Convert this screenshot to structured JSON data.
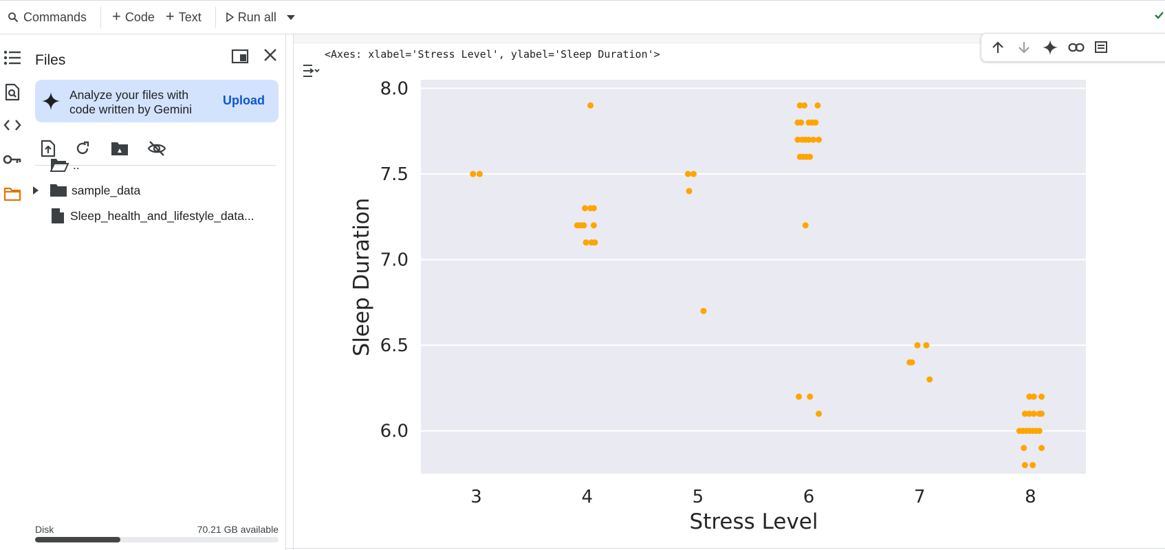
{
  "toolbar": {
    "commands_label": "Commands",
    "code_label": "Code",
    "text_label": "Text",
    "run_all_label": "Run all"
  },
  "files_panel": {
    "title": "Files",
    "gemini_banner": {
      "text": "Analyze your files with code written by Gemini",
      "upload_label": "Upload"
    },
    "tree": [
      {
        "name": "..",
        "type": "parent-folder"
      },
      {
        "name": "sample_data",
        "type": "folder"
      },
      {
        "name": "Sleep_health_and_lifestyle_data...",
        "type": "file"
      }
    ],
    "disk": {
      "label": "Disk",
      "available": "70.21 GB available",
      "used_fraction": 0.35
    }
  },
  "output": {
    "repr": "<Axes: xlabel='Stress Level', ylabel='Sleep Duration'>"
  },
  "colors": {
    "accent": "#0b57d0",
    "banner_bg": "#d3e3fd",
    "point_color": "#ffa500",
    "plot_bg": "#eaeaf2",
    "folder_active": "#e37400",
    "check": "#188038"
  },
  "chart_data": {
    "type": "scatter",
    "style": "seaborn stripplot with jitter",
    "xlabel": "Stress Level",
    "ylabel": "Sleep Duration",
    "categories": [
      "3",
      "4",
      "5",
      "6",
      "7",
      "8"
    ],
    "ylim": [
      5.75,
      8.05
    ],
    "yticks": [
      "6.0",
      "6.5",
      "7.0",
      "7.5",
      "8.0"
    ],
    "grid": true,
    "points": [
      {
        "x": "3",
        "y": 7.5,
        "offset": -0.03
      },
      {
        "x": "3",
        "y": 7.5,
        "offset": 0.03
      },
      {
        "x": "4",
        "y": 7.9,
        "offset": 0.03
      },
      {
        "x": "4",
        "y": 7.3,
        "offset": -0.02
      },
      {
        "x": "4",
        "y": 7.3,
        "offset": 0.03
      },
      {
        "x": "4",
        "y": 7.3,
        "offset": 0.06
      },
      {
        "x": "4",
        "y": 7.2,
        "offset": -0.09
      },
      {
        "x": "4",
        "y": 7.2,
        "offset": -0.06
      },
      {
        "x": "4",
        "y": 7.2,
        "offset": -0.03
      },
      {
        "x": "4",
        "y": 7.2,
        "offset": 0.06
      },
      {
        "x": "4",
        "y": 7.1,
        "offset": -0.01
      },
      {
        "x": "4",
        "y": 7.1,
        "offset": 0.04
      },
      {
        "x": "4",
        "y": 7.1,
        "offset": 0.07
      },
      {
        "x": "5",
        "y": 7.5,
        "offset": -0.09
      },
      {
        "x": "5",
        "y": 7.5,
        "offset": -0.04
      },
      {
        "x": "5",
        "y": 7.4,
        "offset": -0.08
      },
      {
        "x": "5",
        "y": 6.7,
        "offset": 0.05
      },
      {
        "x": "6",
        "y": 7.9,
        "offset": -0.08
      },
      {
        "x": "6",
        "y": 7.9,
        "offset": -0.04
      },
      {
        "x": "6",
        "y": 7.9,
        "offset": 0.08
      },
      {
        "x": "6",
        "y": 7.8,
        "offset": -0.1
      },
      {
        "x": "6",
        "y": 7.8,
        "offset": -0.07
      },
      {
        "x": "6",
        "y": 7.8,
        "offset": 0.0
      },
      {
        "x": "6",
        "y": 7.8,
        "offset": 0.03
      },
      {
        "x": "6",
        "y": 7.8,
        "offset": 0.06
      },
      {
        "x": "6",
        "y": 7.7,
        "offset": -0.1
      },
      {
        "x": "6",
        "y": 7.7,
        "offset": -0.06
      },
      {
        "x": "6",
        "y": 7.7,
        "offset": -0.03
      },
      {
        "x": "6",
        "y": 7.7,
        "offset": 0.0
      },
      {
        "x": "6",
        "y": 7.7,
        "offset": 0.04
      },
      {
        "x": "6",
        "y": 7.7,
        "offset": 0.09
      },
      {
        "x": "6",
        "y": 7.6,
        "offset": -0.08
      },
      {
        "x": "6",
        "y": 7.6,
        "offset": -0.05
      },
      {
        "x": "6",
        "y": 7.6,
        "offset": -0.02
      },
      {
        "x": "6",
        "y": 7.6,
        "offset": 0.01
      },
      {
        "x": "6",
        "y": 7.2,
        "offset": -0.03
      },
      {
        "x": "6",
        "y": 6.2,
        "offset": -0.09
      },
      {
        "x": "6",
        "y": 6.2,
        "offset": 0.01
      },
      {
        "x": "6",
        "y": 6.1,
        "offset": 0.09
      },
      {
        "x": "7",
        "y": 6.5,
        "offset": -0.02
      },
      {
        "x": "7",
        "y": 6.5,
        "offset": 0.06
      },
      {
        "x": "7",
        "y": 6.4,
        "offset": -0.09
      },
      {
        "x": "7",
        "y": 6.4,
        "offset": -0.07
      },
      {
        "x": "7",
        "y": 6.3,
        "offset": 0.09
      },
      {
        "x": "8",
        "y": 6.2,
        "offset": -0.01
      },
      {
        "x": "8",
        "y": 6.2,
        "offset": 0.03
      },
      {
        "x": "8",
        "y": 6.2,
        "offset": 0.1
      },
      {
        "x": "8",
        "y": 6.1,
        "offset": -0.05
      },
      {
        "x": "8",
        "y": 6.1,
        "offset": -0.01
      },
      {
        "x": "8",
        "y": 6.1,
        "offset": 0.03
      },
      {
        "x": "8",
        "y": 6.1,
        "offset": 0.08
      },
      {
        "x": "8",
        "y": 6.1,
        "offset": 0.1
      },
      {
        "x": "8",
        "y": 6.0,
        "offset": -0.1
      },
      {
        "x": "8",
        "y": 6.0,
        "offset": -0.07
      },
      {
        "x": "8",
        "y": 6.0,
        "offset": -0.04
      },
      {
        "x": "8",
        "y": 6.0,
        "offset": -0.01
      },
      {
        "x": "8",
        "y": 6.0,
        "offset": 0.02
      },
      {
        "x": "8",
        "y": 6.0,
        "offset": 0.05
      },
      {
        "x": "8",
        "y": 6.0,
        "offset": 0.08
      },
      {
        "x": "8",
        "y": 5.9,
        "offset": -0.06
      },
      {
        "x": "8",
        "y": 5.9,
        "offset": 0.1
      },
      {
        "x": "8",
        "y": 5.8,
        "offset": -0.05
      },
      {
        "x": "8",
        "y": 5.8,
        "offset": 0.02
      }
    ]
  }
}
